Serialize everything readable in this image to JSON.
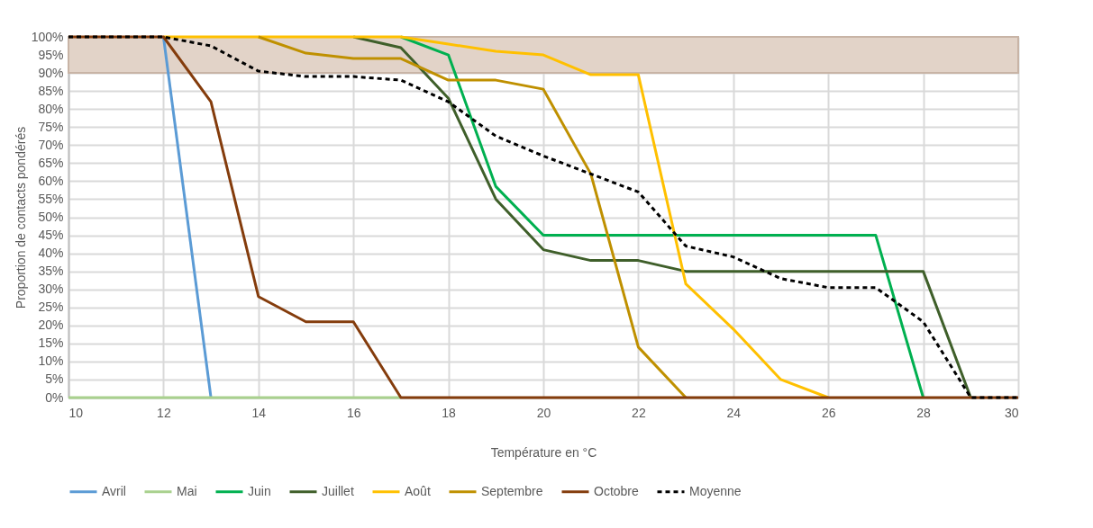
{
  "chart_data": {
    "type": "line",
    "xlabel": "Température en °C",
    "ylabel": "Proportion de contacts pondérés",
    "x": [
      10,
      11,
      12,
      13,
      14,
      15,
      16,
      17,
      18,
      19,
      20,
      21,
      22,
      23,
      24,
      25,
      26,
      27,
      28,
      29,
      30
    ],
    "xlim": [
      10,
      30
    ],
    "xticks": [
      10,
      12,
      14,
      16,
      18,
      20,
      22,
      24,
      26,
      28,
      30
    ],
    "ylim": [
      0,
      100
    ],
    "yticks": [
      {
        "value": 0,
        "label": "0%"
      },
      {
        "value": 5,
        "label": "5%"
      },
      {
        "value": 10,
        "label": "10%"
      },
      {
        "value": 15,
        "label": "15%"
      },
      {
        "value": 20,
        "label": "20%"
      },
      {
        "value": 25,
        "label": "25%"
      },
      {
        "value": 30,
        "label": "30%"
      },
      {
        "value": 35,
        "label": "35%"
      },
      {
        "value": 40,
        "label": "40%"
      },
      {
        "value": 45,
        "label": "45%"
      },
      {
        "value": 50,
        "label": "50%"
      },
      {
        "value": 55,
        "label": "55%"
      },
      {
        "value": 60,
        "label": "60%"
      },
      {
        "value": 65,
        "label": "65%"
      },
      {
        "value": 70,
        "label": "70%"
      },
      {
        "value": 75,
        "label": "75%"
      },
      {
        "value": 80,
        "label": "80%"
      },
      {
        "value": 85,
        "label": "85%"
      },
      {
        "value": 90,
        "label": "90%"
      },
      {
        "value": 95,
        "label": "95%"
      },
      {
        "value": 100,
        "label": "100%"
      }
    ],
    "grid": true,
    "legend": "bottom",
    "line_style": "solid",
    "bands": [
      {
        "axis": "y",
        "from": 90,
        "to": 100,
        "color": "#e2d3c8"
      }
    ],
    "series": [
      {
        "name": "Avril",
        "color": "#5b9bd5",
        "values": [
          null,
          null,
          100,
          0,
          null,
          null,
          null,
          null,
          null,
          null,
          null,
          null,
          null,
          null,
          null,
          null,
          null,
          null,
          null,
          null,
          null
        ]
      },
      {
        "name": "Mai",
        "color": "#a9d18e",
        "values": [
          0,
          0,
          0,
          0,
          0,
          0,
          0,
          0,
          null,
          null,
          null,
          null,
          null,
          null,
          null,
          null,
          null,
          null,
          null,
          null,
          null
        ]
      },
      {
        "name": "Juin",
        "color": "#00b050",
        "values": [
          null,
          null,
          null,
          null,
          null,
          null,
          null,
          100,
          95,
          58.5,
          45,
          45,
          45,
          45,
          45,
          45,
          45,
          45,
          0,
          null,
          null
        ]
      },
      {
        "name": "Juillet",
        "color": "#3f5f2a",
        "values": [
          null,
          null,
          null,
          null,
          null,
          null,
          100,
          97,
          83,
          55,
          41,
          38,
          38,
          35,
          35,
          35,
          35,
          35,
          35,
          0,
          null
        ]
      },
      {
        "name": "Août",
        "color": "#ffc000",
        "values": [
          null,
          null,
          100,
          100,
          100,
          100,
          100,
          100,
          98,
          96,
          95,
          89.5,
          89.5,
          31.5,
          19,
          5,
          0,
          null,
          null,
          null,
          null
        ]
      },
      {
        "name": "Septembre",
        "color": "#bf9000",
        "values": [
          null,
          null,
          null,
          null,
          100,
          95.5,
          94,
          94,
          88,
          88,
          85.5,
          62,
          14,
          0,
          null,
          null,
          null,
          null,
          null,
          null,
          null
        ]
      },
      {
        "name": "Octobre",
        "color": "#843c0c",
        "values": [
          100,
          100,
          100,
          82,
          28,
          21,
          21,
          0,
          0,
          0,
          0,
          0,
          0,
          0,
          0,
          0,
          0,
          0,
          0,
          0,
          0
        ]
      },
      {
        "name": "Moyenne",
        "color": "#000000",
        "line_style": "dashed",
        "values": [
          100,
          100,
          100,
          97.5,
          90.5,
          89,
          89,
          88,
          82,
          72.5,
          67,
          62,
          57,
          42,
          39,
          33,
          30.5,
          30.5,
          21,
          0,
          0
        ]
      }
    ]
  }
}
